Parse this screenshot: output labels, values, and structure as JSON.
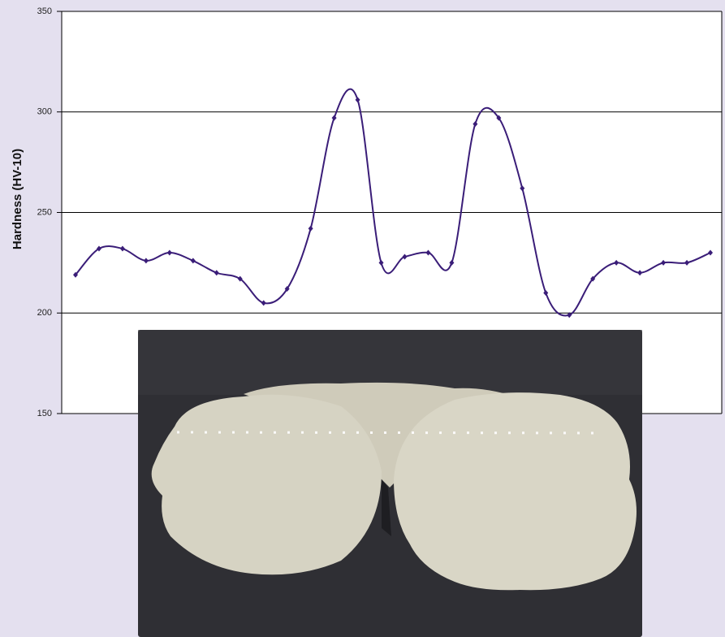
{
  "chart_data": {
    "type": "line",
    "y_label": "Hardness (HV-10)",
    "categories": [
      null,
      null,
      null,
      null,
      null,
      null,
      null,
      null,
      null,
      null,
      null,
      null,
      null,
      null,
      null,
      null,
      null,
      null,
      null,
      null,
      null,
      null,
      null,
      null,
      null,
      null,
      null,
      null
    ],
    "values": [
      219,
      232,
      232,
      226,
      230,
      226,
      220,
      217,
      205,
      212,
      242,
      297,
      306,
      225,
      228,
      230,
      225,
      294,
      297,
      262,
      210,
      199,
      217,
      225,
      220,
      225,
      225,
      230
    ],
    "color": "#3a1d78",
    "ylim": [
      150,
      350
    ],
    "yticks": [
      150,
      200,
      250,
      300,
      350
    ],
    "grid": true
  }
}
